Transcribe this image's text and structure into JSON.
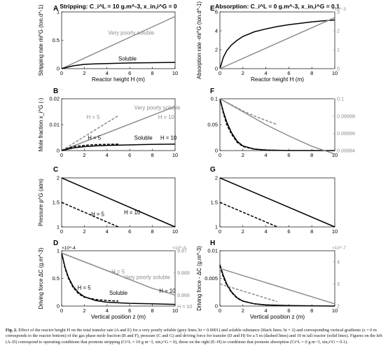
{
  "caption": {
    "label": "Fig. 2.",
    "text": "Effect of the reactor height H on the total transfer rate (A and E) for a very poorly soluble (grey lines; hi = 0.0001) and soluble substance (black lines; hi = 2) and corresponding vertical gradients (z = 0 m corresponds to the reactor bottom) of the gas phase mole fraction (B and F), pressure (C and G) and driving force for transfer (D and H) for a 5 m (dashed lines) and 10 m tall reactor (solid lines). Figures on the left (A–D) correspond to operating conditions that promote stripping (Ci^L = 10 g m−3, xin,i^G = 0), those on the right (E–H) to conditions that promote absorption (Ci^L = 0 g m−3, xin,i^G = 0.1)."
  },
  "colors": {
    "grey": "#8c8c8c",
    "black": "#000000"
  },
  "chart_data": [
    {
      "id": "A",
      "type": "line",
      "panel_letter": "A",
      "title": "Stripping: C_i^L = 10 g.m^-3, x_in,i^G = 0",
      "xlabel": "Reactor height H (m)",
      "ylabel": "Stripping rate ṁi^G (ton.d^-1)",
      "xlim": [
        0,
        10
      ],
      "ylim": [
        0,
        1
      ],
      "xticks": [
        "0",
        "2",
        "4",
        "6",
        "8",
        "10"
      ],
      "yticks": [
        "0",
        "0.5",
        "1"
      ],
      "annotations": [
        {
          "text": "Very poorly soluble",
          "x": 4.1,
          "y": 0.6,
          "color": "#8c8c8c"
        },
        {
          "text": "Soluble",
          "x": 5.0,
          "y": 0.14,
          "color": "#000000"
        }
      ],
      "series": [
        {
          "color": "#8c8c8c",
          "style": "solid",
          "x": [
            0,
            10
          ],
          "y": [
            0,
            0.92
          ]
        },
        {
          "color": "#000000",
          "style": "solid",
          "x": [
            0,
            1,
            2,
            3,
            4,
            6,
            8,
            10
          ],
          "y": [
            0,
            0.05,
            0.075,
            0.085,
            0.09,
            0.1,
            0.105,
            0.11
          ]
        }
      ]
    },
    {
      "id": "E",
      "type": "line",
      "panel_letter": "E",
      "title": "Absorption: C_i^L = 0 g.m^-3, x_in,i^G = 0.1",
      "xlabel": "Reactor height H (m)",
      "ylabel": "Absorption rate -ṁi^G (ton.d^-1)",
      "xlim": [
        0,
        10
      ],
      "ylim": [
        0,
        6
      ],
      "y2lim": [
        0,
        3
      ],
      "xticks": [
        "0",
        "2",
        "4",
        "6",
        "8",
        "10"
      ],
      "yticks": [
        "0",
        "2",
        "4",
        "6"
      ],
      "y2ticks": [
        "0",
        "1",
        "2",
        "3"
      ],
      "y2exponent": "×10^-3",
      "series": [
        {
          "color": "#000000",
          "style": "solid",
          "axis": "left",
          "x": [
            0,
            0.3,
            0.6,
            1,
            1.5,
            2,
            3,
            4,
            5,
            6,
            7,
            8,
            9,
            10
          ],
          "y": [
            0,
            1.2,
            1.9,
            2.5,
            3.0,
            3.4,
            3.9,
            4.2,
            4.45,
            4.65,
            4.8,
            4.95,
            5.05,
            5.15
          ]
        },
        {
          "color": "#8c8c8c",
          "style": "solid",
          "axis": "right",
          "x": [
            0,
            10
          ],
          "y": [
            0,
            2.7
          ]
        }
      ]
    },
    {
      "id": "B",
      "type": "line",
      "panel_letter": "B",
      "xlabel": "",
      "ylabel": "Mole fraction x_i^G (-)",
      "xlim": [
        0,
        10
      ],
      "ylim": [
        0,
        0.02
      ],
      "xticks": [
        "0",
        "2",
        "4",
        "6",
        "8",
        "10"
      ],
      "yticks": [
        "0",
        "0.01",
        "0.02"
      ],
      "annotations": [
        {
          "text": "Very poorly soluble",
          "x": 6.4,
          "y": 0.0158,
          "color": "#8c8c8c"
        },
        {
          "text": "H = 5",
          "x": 2.2,
          "y": 0.0122,
          "color": "#8c8c8c"
        },
        {
          "text": "H = 10",
          "x": 8.5,
          "y": 0.0122,
          "color": "#8c8c8c"
        },
        {
          "text": "H = 5",
          "x": 2.3,
          "y": 0.0042,
          "color": "#000000"
        },
        {
          "text": "Soluble",
          "x": 6.4,
          "y": 0.0042,
          "color": "#000000"
        },
        {
          "text": "H = 10",
          "x": 8.7,
          "y": 0.0042,
          "color": "#000000"
        }
      ],
      "series": [
        {
          "color": "#8c8c8c",
          "style": "solid",
          "x": [
            0,
            10
          ],
          "y": [
            0,
            0.017
          ]
        },
        {
          "color": "#8c8c8c",
          "style": "dashed",
          "x": [
            0,
            5
          ],
          "y": [
            0,
            0.0135
          ]
        },
        {
          "color": "#000000",
          "style": "solid",
          "x": [
            0,
            1,
            2,
            3,
            4,
            6,
            8,
            10
          ],
          "y": [
            0,
            0.001,
            0.0015,
            0.0018,
            0.002,
            0.0022,
            0.0024,
            0.0025
          ]
        },
        {
          "color": "#000000",
          "style": "dashed",
          "x": [
            0,
            1,
            2,
            3,
            4,
            5
          ],
          "y": [
            0,
            0.0015,
            0.002,
            0.0023,
            0.0024,
            0.0025
          ]
        }
      ]
    },
    {
      "id": "F",
      "type": "line",
      "panel_letter": "F",
      "xlabel": "",
      "ylabel": "",
      "xlim": [
        0,
        10
      ],
      "ylim": [
        0,
        0.1
      ],
      "y2lim": [
        0.09994,
        0.1
      ],
      "xticks": [
        "0",
        "2",
        "4",
        "6",
        "8",
        "10"
      ],
      "yticks": [
        "0",
        "0.05",
        "0.1"
      ],
      "y2ticks": [
        "0.09994",
        "0.09996",
        "0.09998",
        "0.1"
      ],
      "series": [
        {
          "color": "#000000",
          "style": "solid",
          "axis": "left",
          "x": [
            0,
            0.3,
            0.6,
            1,
            1.5,
            2,
            3,
            4,
            5,
            6,
            8,
            10
          ],
          "y": [
            0.1,
            0.075,
            0.055,
            0.035,
            0.018,
            0.009,
            0.003,
            0.001,
            0.0005,
            0.0002,
            0.0001,
            0
          ]
        },
        {
          "color": "#000000",
          "style": "dashed",
          "axis": "left",
          "x": [
            0,
            0.3,
            0.6,
            1,
            1.5,
            2,
            3,
            4,
            5
          ],
          "y": [
            0.1,
            0.072,
            0.05,
            0.032,
            0.016,
            0.008,
            0.0025,
            0.001,
            0.0005
          ]
        },
        {
          "color": "#8c8c8c",
          "style": "solid",
          "axis": "right",
          "x": [
            0,
            2,
            4,
            6,
            8,
            10
          ],
          "y": [
            0.1,
            0.099985,
            0.09997,
            0.099957,
            0.099945,
            0.099936
          ]
        },
        {
          "color": "#8c8c8c",
          "style": "dashed",
          "axis": "right",
          "x": [
            0,
            1,
            2,
            3,
            4,
            5
          ],
          "y": [
            0.1,
            0.099993,
            0.099986,
            0.09998,
            0.099975,
            0.09997
          ]
        }
      ]
    },
    {
      "id": "C",
      "type": "line",
      "panel_letter": "C",
      "xlabel": "",
      "ylabel": "Pressure p^G (atm)",
      "xlim": [
        0,
        10
      ],
      "ylim": [
        1,
        2
      ],
      "xticks": [
        "0",
        "2",
        "4",
        "6",
        "8",
        "10"
      ],
      "yticks": [
        "1",
        "1.5",
        "2"
      ],
      "annotations": [
        {
          "text": "H = 5",
          "x": 2.6,
          "y": 1.22,
          "color": "#000000"
        },
        {
          "text": "H = 10",
          "x": 5.5,
          "y": 1.26,
          "color": "#000000"
        }
      ],
      "series": [
        {
          "color": "#000000",
          "style": "solid",
          "x": [
            0,
            10
          ],
          "y": [
            2,
            1
          ]
        },
        {
          "color": "#000000",
          "style": "dashed",
          "x": [
            0,
            5
          ],
          "y": [
            1.5,
            1
          ]
        }
      ]
    },
    {
      "id": "G",
      "type": "line",
      "panel_letter": "G",
      "xlabel": "",
      "ylabel": "",
      "xlim": [
        0,
        10
      ],
      "ylim": [
        1,
        2
      ],
      "xticks": [
        "0",
        "2",
        "4",
        "6",
        "8",
        "10"
      ],
      "yticks": [
        "1",
        "1.5",
        "2"
      ],
      "series": [
        {
          "color": "#000000",
          "style": "solid",
          "x": [
            0,
            10
          ],
          "y": [
            2,
            1
          ]
        },
        {
          "color": "#000000",
          "style": "dashed",
          "x": [
            0,
            5
          ],
          "y": [
            1.5,
            1
          ]
        }
      ]
    },
    {
      "id": "D",
      "type": "line",
      "panel_letter": "D",
      "xlabel": "Vertical position z (m)",
      "ylabel": "Driving force ΔC (g.m^-3)",
      "xlim": [
        0,
        10
      ],
      "ylim": [
        0,
        1
      ],
      "y2lim": [
        9.865,
        9.87
      ],
      "xticks": [
        "0",
        "2",
        "4",
        "6",
        "8",
        "10"
      ],
      "yticks": [
        "0",
        "0.5",
        "1"
      ],
      "yexponent": "×10^-4",
      "y2exponent": "×10^-5",
      "y2ticks": [
        "9.866",
        "9.868",
        "9.87"
      ],
      "y2extra": "H = 10",
      "annotations": [
        {
          "text": "H = 5",
          "x": 4.4,
          "y": 0.59,
          "color": "#8c8c8c"
        },
        {
          "text": "Very poorly soluble",
          "x": 5.5,
          "y": 0.49,
          "color": "#8c8c8c"
        },
        {
          "text": "H = 5",
          "x": 1.4,
          "y": 0.3,
          "color": "#000000"
        },
        {
          "text": "Soluble",
          "x": 4.2,
          "y": 0.2,
          "color": "#000000"
        },
        {
          "text": "H = 10",
          "x": 8.6,
          "y": 0.24,
          "color": "#000000"
        }
      ],
      "series": [
        {
          "color": "#000000",
          "style": "solid",
          "axis": "left",
          "x": [
            0,
            0.3,
            0.6,
            1,
            1.5,
            2,
            3,
            4,
            6,
            8,
            10
          ],
          "y": [
            0.96,
            0.7,
            0.52,
            0.36,
            0.24,
            0.17,
            0.1,
            0.07,
            0.05,
            0.04,
            0.03
          ]
        },
        {
          "color": "#000000",
          "style": "dashed",
          "axis": "left",
          "x": [
            0,
            0.3,
            0.6,
            1,
            1.5,
            2,
            3,
            4,
            5
          ],
          "y": [
            0.96,
            0.68,
            0.5,
            0.34,
            0.22,
            0.16,
            0.12,
            0.1,
            0.09
          ]
        },
        {
          "color": "#8c8c8c",
          "style": "solid",
          "axis": "right",
          "x": [
            0,
            1,
            2,
            4,
            6,
            8,
            10
          ],
          "y": [
            9.8698,
            9.8694,
            9.869,
            9.8682,
            9.8674,
            9.8666,
            9.866
          ]
        },
        {
          "color": "#8c8c8c",
          "style": "dashed",
          "axis": "right",
          "x": [
            0,
            1,
            2,
            3,
            4,
            5
          ],
          "y": [
            9.8698,
            9.8694,
            9.869,
            9.8686,
            9.8682,
            9.8679
          ]
        }
      ]
    },
    {
      "id": "H",
      "type": "line",
      "panel_letter": "H",
      "xlabel": "Vertical position z (m)",
      "ylabel": "Driving force - ΔC (g.m^-3)",
      "xlim": [
        0,
        10
      ],
      "ylim": [
        0,
        0.01
      ],
      "y2lim": [
        2,
        4.5
      ],
      "xticks": [
        "0",
        "2",
        "4",
        "6",
        "8",
        "10"
      ],
      "yticks": [
        "0",
        "0.005",
        "0.01"
      ],
      "y2ticks": [
        "2",
        "3",
        "4"
      ],
      "y2exponent": "×10^-7",
      "series": [
        {
          "color": "#000000",
          "style": "solid",
          "axis": "left",
          "x": [
            0,
            0.3,
            0.6,
            1,
            1.5,
            2,
            3,
            4,
            6,
            8,
            10
          ],
          "y": [
            0.0075,
            0.0055,
            0.004,
            0.0026,
            0.0015,
            0.0009,
            0.0004,
            0.0002,
            0.0001,
            5e-05,
            0
          ]
        },
        {
          "color": "#000000",
          "style": "dashed",
          "axis": "left",
          "x": [
            0,
            0.3,
            0.6,
            1,
            1.5,
            2,
            3,
            4,
            5
          ],
          "y": [
            0.0072,
            0.0052,
            0.0038,
            0.0025,
            0.0014,
            0.0009,
            0.0004,
            0.0002,
            0.0001
          ]
        },
        {
          "color": "#8c8c8c",
          "style": "solid",
          "axis": "right",
          "x": [
            0,
            10
          ],
          "y": [
            3.7,
            2.1
          ]
        },
        {
          "color": "#8c8c8c",
          "style": "dashed",
          "axis": "right",
          "x": [
            0,
            5
          ],
          "y": [
            3.0,
            2.2
          ]
        }
      ]
    }
  ]
}
